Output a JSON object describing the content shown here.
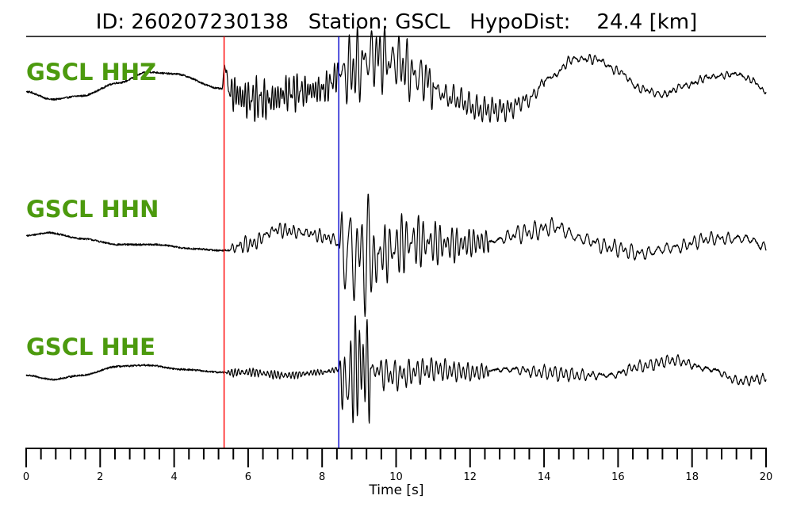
{
  "header": {
    "title": "ID: 260207230138   Station: GSCL   HypoDist:    24.4 [km]"
  },
  "colors": {
    "label": "#4c9a0e",
    "trace": "#000000",
    "p_pick": "#ff0000",
    "s_pick": "#0000cc"
  },
  "chart_data": {
    "type": "line",
    "xlabel": "Time [s]",
    "xlim": [
      0,
      20
    ],
    "x_major_ticks": [
      0,
      2,
      4,
      6,
      8,
      10,
      12,
      14,
      16,
      18,
      20
    ],
    "x_tick_labels": [
      "0",
      "2",
      "4",
      "6",
      "8",
      "10",
      "12",
      "14",
      "16",
      "18",
      "20"
    ],
    "x_minor_step": 0.4,
    "picks": [
      {
        "phase": "P",
        "time": 5.35,
        "color": "#ff0000"
      },
      {
        "phase": "S",
        "time": 8.45,
        "color": "#0000cc"
      }
    ],
    "series": [
      {
        "name": "GSCL HHZ",
        "noise_amp": 0.015,
        "control_points": [
          [
            0,
            -0.05
          ],
          [
            0.7,
            -0.18
          ],
          [
            1.5,
            -0.12
          ],
          [
            2.5,
            0.1
          ],
          [
            3.3,
            0.28
          ],
          [
            4.0,
            0.25
          ],
          [
            5.3,
            0.0
          ],
          [
            5.36,
            0.4
          ],
          [
            5.5,
            -0.05
          ],
          [
            6.0,
            -0.18
          ],
          [
            6.5,
            -0.2
          ],
          [
            7.2,
            -0.05
          ],
          [
            8.0,
            -0.02
          ],
          [
            8.5,
            0.25
          ],
          [
            8.9,
            0.35
          ],
          [
            9.4,
            0.55
          ],
          [
            10.0,
            0.45
          ],
          [
            10.6,
            0.2
          ],
          [
            11.5,
            -0.15
          ],
          [
            12.3,
            -0.35
          ],
          [
            13.0,
            -0.35
          ],
          [
            13.5,
            -0.2
          ],
          [
            14.2,
            0.2
          ],
          [
            14.8,
            0.5
          ],
          [
            15.4,
            0.5
          ],
          [
            16.0,
            0.3
          ],
          [
            16.6,
            0.0
          ],
          [
            17.2,
            -0.1
          ],
          [
            17.8,
            0.05
          ],
          [
            18.5,
            0.2
          ],
          [
            19.2,
            0.25
          ],
          [
            19.6,
            0.15
          ],
          [
            20.0,
            -0.05
          ]
        ],
        "bursts": [
          {
            "t0": 5.35,
            "t1": 8.45,
            "amp": 0.35,
            "freq": 11
          },
          {
            "t0": 8.45,
            "t1": 11.0,
            "amp": 0.55,
            "freq": 8
          },
          {
            "t0": 11.0,
            "t1": 14.0,
            "amp": 0.2,
            "freq": 7
          },
          {
            "t0": 14.0,
            "t1": 20.0,
            "amp": 0.07,
            "freq": 7
          }
        ]
      },
      {
        "name": "GSCL HHN",
        "noise_amp": 0.015,
        "control_points": [
          [
            0,
            0.1
          ],
          [
            0.6,
            0.15
          ],
          [
            1.5,
            0.05
          ],
          [
            2.5,
            -0.05
          ],
          [
            3.5,
            -0.05
          ],
          [
            4.5,
            -0.12
          ],
          [
            5.3,
            -0.15
          ],
          [
            6.0,
            -0.05
          ],
          [
            6.8,
            0.2
          ],
          [
            7.5,
            0.15
          ],
          [
            8.3,
            0.05
          ],
          [
            8.5,
            -0.1
          ],
          [
            9.0,
            -0.25
          ],
          [
            9.5,
            -0.2
          ],
          [
            10.5,
            0.0
          ],
          [
            11.5,
            -0.05
          ],
          [
            12.5,
            0.0
          ],
          [
            13.5,
            0.15
          ],
          [
            14.3,
            0.25
          ],
          [
            15.0,
            0.05
          ],
          [
            15.8,
            -0.1
          ],
          [
            16.6,
            -0.2
          ],
          [
            17.5,
            -0.1
          ],
          [
            18.5,
            0.05
          ],
          [
            19.5,
            0.05
          ],
          [
            20.0,
            -0.1
          ]
        ],
        "bursts": [
          {
            "t0": 5.35,
            "t1": 8.45,
            "amp": 0.12,
            "freq": 8
          },
          {
            "t0": 8.45,
            "t1": 9.5,
            "amp": 0.9,
            "freq": 6
          },
          {
            "t0": 9.5,
            "t1": 12.5,
            "amp": 0.45,
            "freq": 6
          },
          {
            "t0": 12.5,
            "t1": 20.0,
            "amp": 0.15,
            "freq": 6
          }
        ]
      },
      {
        "name": "GSCL HHE",
        "noise_amp": 0.015,
        "control_points": [
          [
            0,
            -0.05
          ],
          [
            0.7,
            -0.12
          ],
          [
            1.5,
            -0.05
          ],
          [
            2.5,
            0.1
          ],
          [
            3.3,
            0.12
          ],
          [
            4.2,
            0.05
          ],
          [
            5.3,
            0.0
          ],
          [
            6.0,
            0.0
          ],
          [
            7.0,
            -0.05
          ],
          [
            8.0,
            0.0
          ],
          [
            8.45,
            0.05
          ],
          [
            8.6,
            -0.2
          ],
          [
            9.0,
            0.1
          ],
          [
            10.0,
            -0.05
          ],
          [
            11.0,
            0.05
          ],
          [
            12.0,
            0.0
          ],
          [
            13.0,
            0.05
          ],
          [
            14.0,
            0.0
          ],
          [
            15.0,
            -0.05
          ],
          [
            15.8,
            -0.05
          ],
          [
            16.6,
            0.1
          ],
          [
            17.5,
            0.2
          ],
          [
            18.5,
            0.05
          ],
          [
            19.3,
            -0.15
          ],
          [
            20.0,
            -0.1
          ]
        ],
        "bursts": [
          {
            "t0": 5.35,
            "t1": 8.45,
            "amp": 0.06,
            "freq": 10
          },
          {
            "t0": 8.45,
            "t1": 9.3,
            "amp": 0.9,
            "freq": 7
          },
          {
            "t0": 9.3,
            "t1": 12.5,
            "amp": 0.3,
            "freq": 6
          },
          {
            "t0": 12.5,
            "t1": 20.0,
            "amp": 0.12,
            "freq": 6
          }
        ]
      }
    ]
  }
}
